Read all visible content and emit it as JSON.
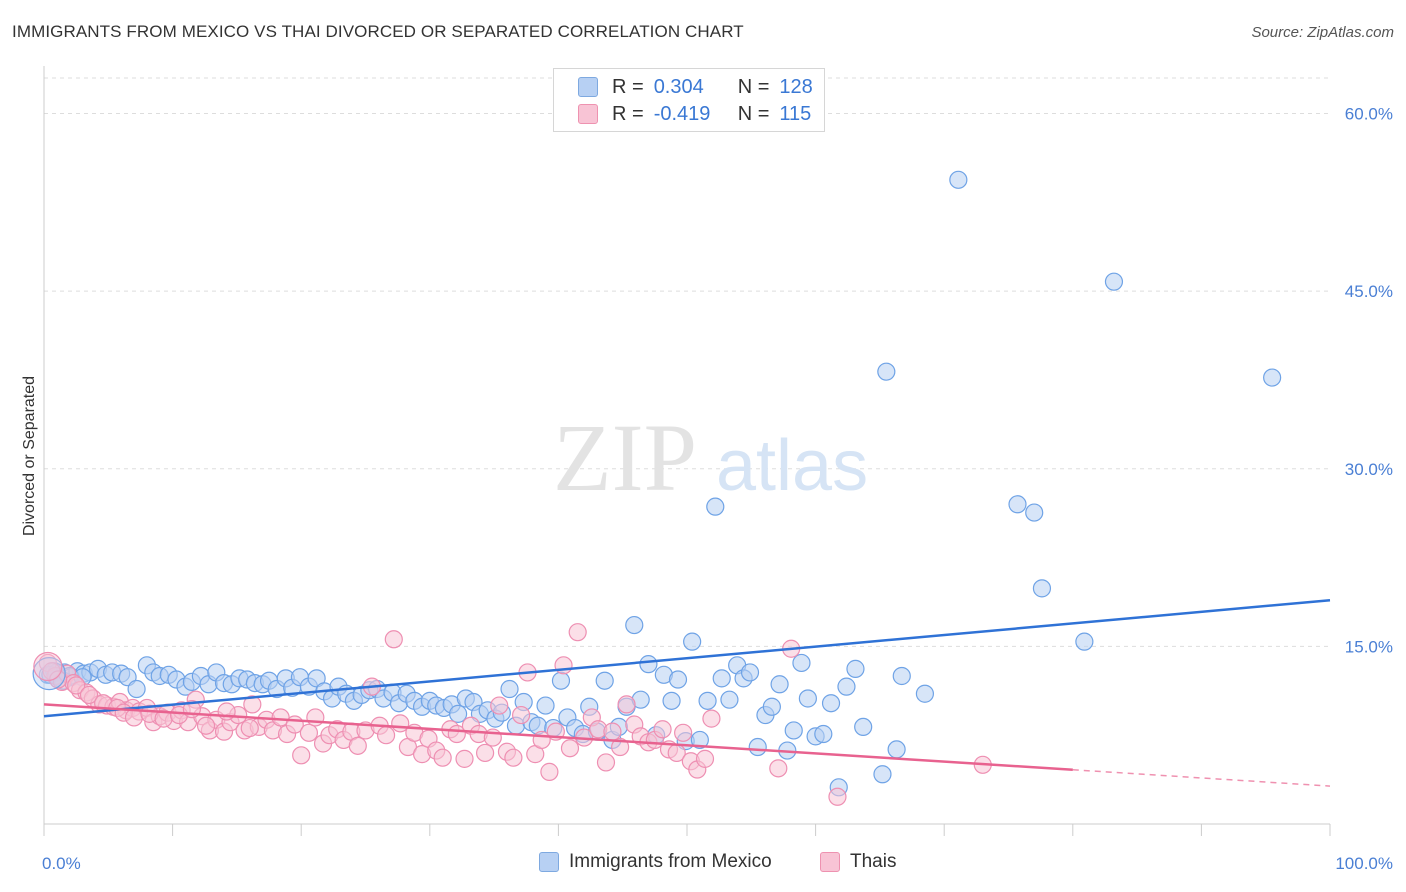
{
  "title": "IMMIGRANTS FROM MEXICO VS THAI DIVORCED OR SEPARATED CORRELATION CHART",
  "source": "Source: ZipAtlas.com",
  "watermark": {
    "zip": "ZIP",
    "atlas": "atlas"
  },
  "legend": {
    "rows": [
      {
        "r_label": "R =",
        "r_value": "0.304",
        "n_label": "N =",
        "n_value": "128",
        "color": "#a9c8f0",
        "border": "#7ea9e0"
      },
      {
        "r_label": "R =",
        "r_value": "-0.419",
        "n_label": "N =",
        "n_value": "115",
        "color": "#f7b8cc",
        "border": "#ee92b0"
      }
    ]
  },
  "bottom_legend": {
    "series1": "Immigrants from Mexico",
    "series2": "Thais"
  },
  "chart_data": {
    "type": "scatter",
    "title": "IMMIGRANTS FROM MEXICO VS THAI DIVORCED OR SEPARATED CORRELATION CHART",
    "xlabel": "",
    "ylabel": "Divorced or Separated",
    "xlim": [
      0,
      100
    ],
    "ylim": [
      0,
      63
    ],
    "x_tick_labels": [
      "0.0%",
      "100.0%"
    ],
    "y_ticks": [
      15,
      30,
      45,
      60
    ],
    "y_tick_labels": [
      "15.0%",
      "30.0%",
      "45.0%",
      "60.0%"
    ],
    "grid": true,
    "legend_position": "top-center",
    "series": [
      {
        "name": "Immigrants from Mexico",
        "color": "#6fa3e6",
        "fill": "#b7d0f3",
        "trend": {
          "x": [
            0,
            100
          ],
          "y": [
            9.1,
            18.9
          ]
        },
        "points": [
          [
            0.3,
            12.6
          ],
          [
            0.8,
            12.9
          ],
          [
            1.2,
            12.3
          ],
          [
            1.6,
            12.8
          ],
          [
            2.1,
            12.4
          ],
          [
            2.6,
            12.9
          ],
          [
            3.1,
            12.7
          ],
          [
            3.6,
            12.8
          ],
          [
            4.2,
            13.1
          ],
          [
            4.8,
            12.6
          ],
          [
            5.3,
            12.8
          ],
          [
            6.0,
            12.7
          ],
          [
            6.5,
            12.4
          ],
          [
            7.2,
            11.4
          ],
          [
            8.0,
            13.4
          ],
          [
            8.5,
            12.8
          ],
          [
            9.0,
            12.5
          ],
          [
            9.7,
            12.6
          ],
          [
            10.3,
            12.2
          ],
          [
            11.0,
            11.6
          ],
          [
            11.5,
            12.0
          ],
          [
            12.2,
            12.5
          ],
          [
            12.8,
            11.8
          ],
          [
            13.4,
            12.8
          ],
          [
            14.0,
            11.9
          ],
          [
            14.6,
            11.8
          ],
          [
            15.2,
            12.3
          ],
          [
            15.8,
            12.2
          ],
          [
            16.4,
            11.9
          ],
          [
            17.0,
            11.8
          ],
          [
            17.5,
            12.1
          ],
          [
            18.1,
            11.4
          ],
          [
            18.8,
            12.3
          ],
          [
            19.3,
            11.5
          ],
          [
            19.9,
            12.4
          ],
          [
            20.6,
            11.6
          ],
          [
            21.2,
            12.3
          ],
          [
            21.8,
            11.2
          ],
          [
            22.4,
            10.6
          ],
          [
            22.9,
            11.6
          ],
          [
            23.5,
            11.0
          ],
          [
            24.1,
            10.4
          ],
          [
            24.7,
            10.9
          ],
          [
            25.3,
            11.3
          ],
          [
            25.9,
            11.4
          ],
          [
            26.4,
            10.6
          ],
          [
            27.1,
            11.1
          ],
          [
            27.6,
            10.2
          ],
          [
            28.2,
            11.0
          ],
          [
            28.8,
            10.4
          ],
          [
            29.4,
            9.9
          ],
          [
            30.0,
            10.4
          ],
          [
            30.5,
            10.0
          ],
          [
            31.1,
            9.8
          ],
          [
            31.7,
            10.1
          ],
          [
            32.2,
            9.3
          ],
          [
            32.8,
            10.6
          ],
          [
            33.4,
            10.3
          ],
          [
            33.9,
            9.3
          ],
          [
            34.5,
            9.6
          ],
          [
            35.1,
            8.9
          ],
          [
            35.6,
            9.4
          ],
          [
            36.2,
            11.4
          ],
          [
            36.7,
            8.3
          ],
          [
            37.3,
            10.3
          ],
          [
            37.9,
            8.6
          ],
          [
            38.4,
            8.3
          ],
          [
            39.0,
            10.0
          ],
          [
            39.6,
            8.1
          ],
          [
            40.2,
            12.1
          ],
          [
            40.7,
            9.0
          ],
          [
            41.3,
            8.1
          ],
          [
            41.9,
            7.6
          ],
          [
            42.4,
            9.9
          ],
          [
            43.0,
            7.8
          ],
          [
            43.6,
            12.1
          ],
          [
            44.2,
            7.1
          ],
          [
            44.7,
            8.2
          ],
          [
            45.3,
            9.9
          ],
          [
            45.9,
            16.8
          ],
          [
            46.4,
            10.5
          ],
          [
            47.0,
            13.5
          ],
          [
            47.6,
            7.5
          ],
          [
            48.2,
            12.6
          ],
          [
            48.8,
            10.4
          ],
          [
            49.3,
            12.2
          ],
          [
            49.9,
            7.0
          ],
          [
            50.4,
            15.4
          ],
          [
            51.0,
            7.1
          ],
          [
            51.6,
            10.4
          ],
          [
            52.2,
            26.8
          ],
          [
            52.7,
            12.3
          ],
          [
            53.3,
            10.5
          ],
          [
            53.9,
            13.4
          ],
          [
            54.4,
            12.3
          ],
          [
            54.9,
            12.8
          ],
          [
            55.5,
            6.5
          ],
          [
            56.1,
            9.2
          ],
          [
            56.6,
            9.9
          ],
          [
            57.2,
            11.8
          ],
          [
            57.8,
            6.2
          ],
          [
            58.3,
            7.9
          ],
          [
            58.9,
            13.6
          ],
          [
            59.4,
            10.6
          ],
          [
            60.0,
            7.4
          ],
          [
            60.6,
            7.6
          ],
          [
            61.2,
            10.2
          ],
          [
            61.8,
            3.1
          ],
          [
            62.4,
            11.6
          ],
          [
            63.1,
            13.1
          ],
          [
            63.7,
            8.2
          ],
          [
            65.2,
            4.2
          ],
          [
            65.5,
            38.2
          ],
          [
            66.3,
            6.3
          ],
          [
            66.7,
            12.5
          ],
          [
            68.5,
            11.0
          ],
          [
            71.1,
            54.4
          ],
          [
            75.7,
            27.0
          ],
          [
            77.0,
            26.3
          ],
          [
            77.6,
            19.9
          ],
          [
            80.9,
            15.4
          ],
          [
            83.2,
            45.8
          ],
          [
            95.5,
            37.7
          ],
          [
            0.5,
            12.6
          ],
          [
            1.0,
            12.8
          ],
          [
            1.5,
            12.1
          ],
          [
            2.0,
            12.5
          ],
          [
            3.0,
            12.4
          ]
        ]
      },
      {
        "name": "Thais",
        "color": "#ee8fb2",
        "fill": "#f8c4d5",
        "trend": {
          "x": [
            0,
            100
          ],
          "y": [
            10.1,
            3.2
          ]
        },
        "trend_dashed_from": 80,
        "points": [
          [
            0.3,
            13.6
          ],
          [
            0.9,
            12.5
          ],
          [
            1.4,
            12.0
          ],
          [
            1.8,
            12.7
          ],
          [
            2.3,
            11.9
          ],
          [
            2.8,
            11.3
          ],
          [
            3.3,
            11.1
          ],
          [
            3.8,
            10.6
          ],
          [
            4.3,
            10.1
          ],
          [
            4.9,
            10.0
          ],
          [
            5.4,
            9.9
          ],
          [
            5.9,
            10.3
          ],
          [
            6.4,
            9.6
          ],
          [
            6.9,
            9.8
          ],
          [
            7.4,
            9.5
          ],
          [
            8.0,
            9.8
          ],
          [
            8.5,
            8.6
          ],
          [
            9.0,
            9.1
          ],
          [
            9.6,
            9.4
          ],
          [
            10.1,
            8.7
          ],
          [
            10.7,
            9.6
          ],
          [
            11.2,
            8.6
          ],
          [
            11.8,
            10.5
          ],
          [
            12.3,
            9.1
          ],
          [
            12.9,
            7.9
          ],
          [
            13.4,
            8.8
          ],
          [
            14.0,
            7.8
          ],
          [
            14.5,
            8.6
          ],
          [
            15.1,
            9.2
          ],
          [
            15.6,
            7.9
          ],
          [
            16.2,
            10.1
          ],
          [
            16.7,
            8.2
          ],
          [
            17.3,
            8.8
          ],
          [
            17.8,
            7.9
          ],
          [
            18.4,
            9.0
          ],
          [
            18.9,
            7.6
          ],
          [
            19.5,
            8.4
          ],
          [
            20.0,
            5.8
          ],
          [
            20.6,
            7.7
          ],
          [
            21.1,
            9.0
          ],
          [
            21.7,
            6.8
          ],
          [
            22.2,
            7.5
          ],
          [
            22.8,
            8.0
          ],
          [
            23.3,
            7.1
          ],
          [
            23.9,
            7.8
          ],
          [
            24.4,
            6.6
          ],
          [
            25.0,
            7.9
          ],
          [
            25.5,
            11.6
          ],
          [
            26.1,
            8.3
          ],
          [
            26.6,
            7.5
          ],
          [
            27.2,
            15.6
          ],
          [
            27.7,
            8.5
          ],
          [
            28.3,
            6.5
          ],
          [
            28.8,
            7.7
          ],
          [
            29.4,
            5.9
          ],
          [
            29.9,
            7.2
          ],
          [
            30.5,
            6.2
          ],
          [
            31.0,
            5.6
          ],
          [
            31.6,
            8.0
          ],
          [
            32.1,
            7.6
          ],
          [
            32.7,
            5.5
          ],
          [
            33.2,
            8.3
          ],
          [
            33.8,
            7.6
          ],
          [
            34.3,
            6.0
          ],
          [
            34.9,
            7.3
          ],
          [
            35.4,
            10.0
          ],
          [
            36.0,
            6.1
          ],
          [
            36.5,
            5.6
          ],
          [
            37.1,
            9.2
          ],
          [
            37.6,
            12.8
          ],
          [
            38.2,
            5.9
          ],
          [
            38.7,
            7.1
          ],
          [
            39.3,
            4.4
          ],
          [
            39.8,
            7.8
          ],
          [
            40.4,
            13.4
          ],
          [
            40.9,
            6.4
          ],
          [
            41.5,
            16.2
          ],
          [
            42.0,
            7.3
          ],
          [
            42.6,
            9.0
          ],
          [
            43.1,
            8.0
          ],
          [
            43.7,
            5.2
          ],
          [
            44.2,
            7.8
          ],
          [
            44.8,
            6.5
          ],
          [
            45.3,
            10.1
          ],
          [
            45.9,
            8.4
          ],
          [
            46.4,
            7.4
          ],
          [
            47.0,
            6.9
          ],
          [
            47.5,
            7.1
          ],
          [
            48.1,
            8.0
          ],
          [
            48.6,
            6.3
          ],
          [
            49.2,
            6.0
          ],
          [
            49.7,
            7.7
          ],
          [
            50.3,
            5.3
          ],
          [
            50.8,
            4.6
          ],
          [
            51.4,
            5.5
          ],
          [
            51.9,
            8.9
          ],
          [
            57.1,
            4.7
          ],
          [
            58.1,
            14.8
          ],
          [
            61.7,
            2.3
          ],
          [
            73.0,
            5.0
          ],
          [
            0.6,
            12.9
          ],
          [
            1.1,
            12.2
          ],
          [
            2.5,
            11.7
          ],
          [
            3.5,
            10.9
          ],
          [
            4.6,
            10.2
          ],
          [
            5.7,
            9.8
          ],
          [
            6.2,
            9.4
          ],
          [
            7.0,
            9.0
          ],
          [
            8.2,
            9.3
          ],
          [
            9.3,
            8.9
          ],
          [
            10.5,
            9.2
          ],
          [
            11.5,
            9.7
          ],
          [
            12.6,
            8.3
          ],
          [
            14.2,
            9.5
          ],
          [
            16.0,
            8.1
          ]
        ]
      }
    ]
  }
}
